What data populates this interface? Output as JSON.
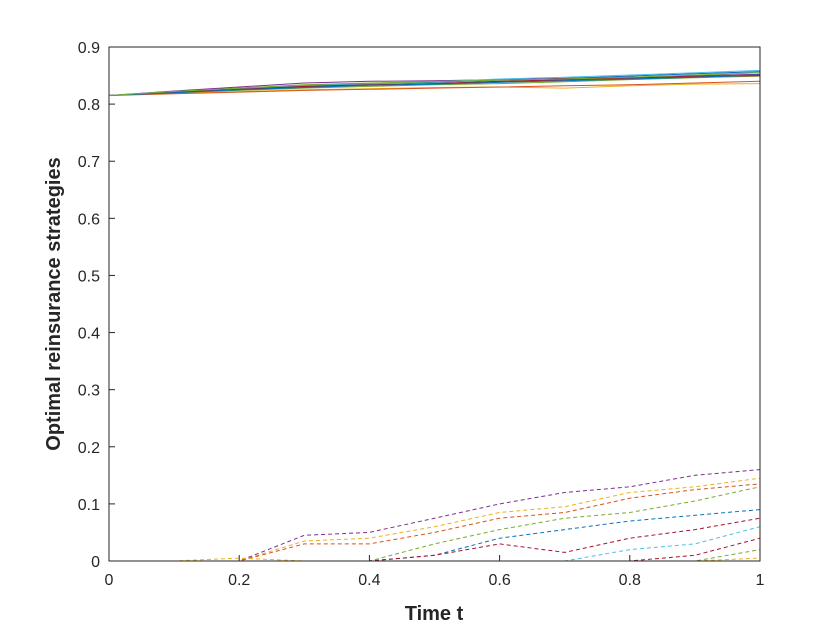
{
  "chart_data": {
    "type": "line",
    "xlabel": "Time t",
    "ylabel": "Optimal reinsurance strategies",
    "xlim": [
      0,
      1
    ],
    "ylim": [
      0,
      0.9
    ],
    "xticks": [
      0,
      0.2,
      0.4,
      0.6,
      0.8,
      1
    ],
    "xtick_labels": [
      "0",
      "0.2",
      "0.4",
      "0.6",
      "0.8",
      "1"
    ],
    "yticks": [
      0,
      0.1,
      0.2,
      0.3,
      0.4,
      0.5,
      0.6,
      0.7,
      0.8,
      0.9
    ],
    "ytick_labels": [
      "0",
      "0.1",
      "0.2",
      "0.3",
      "0.4",
      "0.5",
      "0.6",
      "0.7",
      "0.8",
      "0.9"
    ],
    "grid": false,
    "legend": "none",
    "x": [
      0,
      0.1,
      0.2,
      0.3,
      0.4,
      0.5,
      0.6,
      0.7,
      0.8,
      0.9,
      1.0
    ],
    "series": [
      {
        "style": "solid",
        "color": "#0072BD",
        "values": [
          0.815,
          0.822,
          0.828,
          0.833,
          0.836,
          0.838,
          0.842,
          0.845,
          0.849,
          0.853,
          0.857
        ]
      },
      {
        "style": "solid",
        "color": "#D95319",
        "values": [
          0.815,
          0.821,
          0.826,
          0.83,
          0.833,
          0.836,
          0.839,
          0.842,
          0.845,
          0.849,
          0.852
        ]
      },
      {
        "style": "solid",
        "color": "#EDB120",
        "values": [
          0.815,
          0.819,
          0.822,
          0.825,
          0.827,
          0.829,
          0.83,
          0.828,
          0.832,
          0.835,
          0.836
        ]
      },
      {
        "style": "solid",
        "color": "#7E2F8E",
        "values": [
          0.815,
          0.823,
          0.83,
          0.837,
          0.84,
          0.841,
          0.843,
          0.845,
          0.847,
          0.85,
          0.852
        ]
      },
      {
        "style": "solid",
        "color": "#77AC30",
        "values": [
          0.815,
          0.82,
          0.824,
          0.828,
          0.831,
          0.834,
          0.836,
          0.839,
          0.843,
          0.846,
          0.849
        ]
      },
      {
        "style": "solid",
        "color": "#4DBEEE",
        "values": [
          0.815,
          0.822,
          0.827,
          0.832,
          0.835,
          0.839,
          0.844,
          0.847,
          0.851,
          0.855,
          0.859
        ]
      },
      {
        "style": "solid",
        "color": "#A2142F",
        "values": [
          0.815,
          0.821,
          0.826,
          0.831,
          0.834,
          0.836,
          0.84,
          0.843,
          0.846,
          0.848,
          0.85
        ]
      },
      {
        "style": "solid",
        "color": "#D95319",
        "values": [
          0.815,
          0.818,
          0.821,
          0.824,
          0.826,
          0.828,
          0.83,
          0.832,
          0.834,
          0.837,
          0.84
        ]
      },
      {
        "style": "solid",
        "color": "#0072BD",
        "values": [
          0.815,
          0.82,
          0.825,
          0.829,
          0.833,
          0.835,
          0.838,
          0.841,
          0.844,
          0.847,
          0.851
        ]
      },
      {
        "style": "solid",
        "color": "#77AC30",
        "values": [
          0.815,
          0.822,
          0.828,
          0.834,
          0.837,
          0.839,
          0.842,
          0.844,
          0.847,
          0.851,
          0.855
        ]
      },
      {
        "style": "dashed",
        "color": "#7E2F8E",
        "values": [
          0,
          0,
          0,
          0.045,
          0.05,
          0.075,
          0.1,
          0.12,
          0.13,
          0.15,
          0.16
        ]
      },
      {
        "style": "dashed",
        "color": "#EDB120",
        "values": [
          0,
          0,
          0,
          0.035,
          0.04,
          0.06,
          0.085,
          0.095,
          0.12,
          0.13,
          0.145
        ]
      },
      {
        "style": "dashed",
        "color": "#D95319",
        "values": [
          0,
          0,
          0,
          0.03,
          0.03,
          0.05,
          0.075,
          0.085,
          0.11,
          0.125,
          0.135
        ]
      },
      {
        "style": "dashed",
        "color": "#77AC30",
        "values": [
          0,
          0,
          0,
          0,
          0,
          0.03,
          0.055,
          0.075,
          0.085,
          0.105,
          0.13
        ]
      },
      {
        "style": "dashed",
        "color": "#0072BD",
        "values": [
          0,
          0,
          0,
          0,
          0,
          0.01,
          0.04,
          0.055,
          0.07,
          0.08,
          0.09
        ]
      },
      {
        "style": "dashed",
        "color": "#A2142F",
        "values": [
          0,
          0,
          0,
          0,
          0,
          0.01,
          0.03,
          0.015,
          0.04,
          0.055,
          0.075
        ]
      },
      {
        "style": "dashed",
        "color": "#4DBEEE",
        "values": [
          0,
          0,
          0,
          0,
          0,
          0,
          0,
          0,
          0.02,
          0.03,
          0.06
        ]
      },
      {
        "style": "dashed",
        "color": "#EDB120",
        "values": [
          0,
          0,
          0.005,
          0,
          0,
          0,
          0,
          0,
          0,
          0,
          0.005
        ]
      },
      {
        "style": "dashed",
        "color": "#A2142F",
        "values": [
          0,
          0,
          0,
          0,
          0,
          0,
          0,
          0,
          0,
          0.01,
          0.04
        ]
      },
      {
        "style": "dashed",
        "color": "#77AC30",
        "values": [
          0,
          0,
          0,
          0,
          0,
          0,
          0,
          0,
          0,
          0,
          0.02
        ]
      }
    ]
  }
}
